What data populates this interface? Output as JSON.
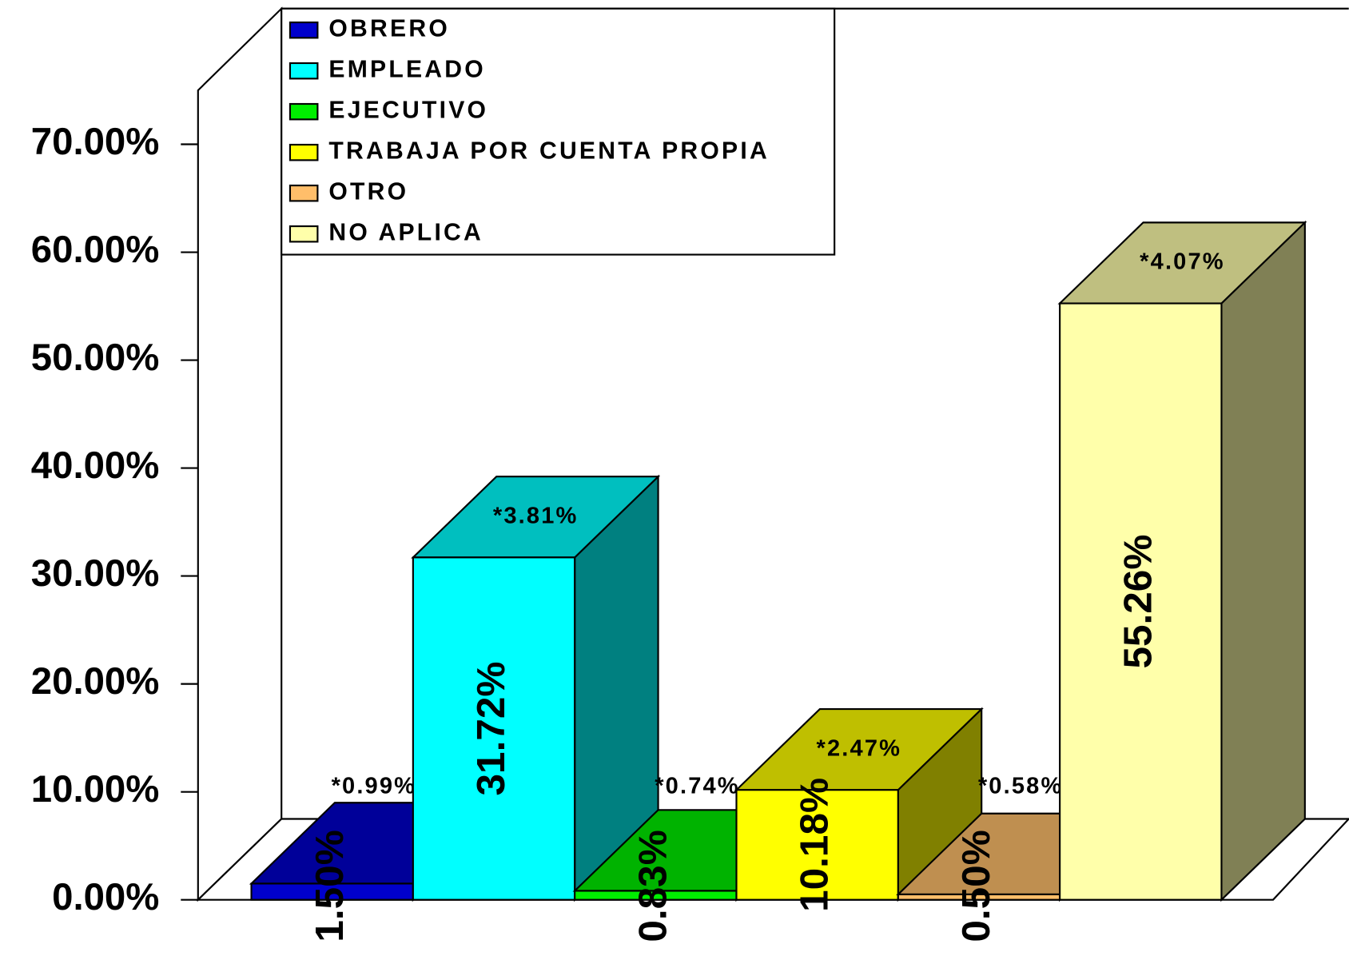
{
  "chart_data": {
    "type": "bar3d",
    "series": [
      {
        "name": "OBRERO",
        "color": "#0000cc",
        "values": [
          1.5
        ],
        "value_labels": [
          "1.50%"
        ],
        "notes": [
          0.99
        ],
        "note_labels": [
          "*0.99%"
        ]
      },
      {
        "name": "EMPLEADO",
        "color": "#00ffff",
        "values": [
          31.72
        ],
        "value_labels": [
          "31.72%"
        ],
        "notes": [
          3.81
        ],
        "note_labels": [
          "*3.81%"
        ]
      },
      {
        "name": "EJECUTIVO",
        "color": "#00ee00",
        "values": [
          0.83
        ],
        "value_labels": [
          "0.83%"
        ],
        "notes": [
          0.74
        ],
        "note_labels": [
          "*0.74%"
        ]
      },
      {
        "name": "TRABAJA POR CUENTA PROPIA",
        "color": "#ffff00",
        "values": [
          10.18
        ],
        "value_labels": [
          "10.18%"
        ],
        "notes": [
          2.47
        ],
        "note_labels": [
          "*2.47%"
        ]
      },
      {
        "name": "OTRO",
        "color": "#ffbe6a",
        "values": [
          0.5
        ],
        "value_labels": [
          "0.50%"
        ],
        "notes": [
          0.58
        ],
        "note_labels": [
          "*0.58%"
        ]
      },
      {
        "name": "NO APLICA",
        "color": "#ffffaa",
        "values": [
          55.26
        ],
        "value_labels": [
          "55.26%"
        ],
        "notes": [
          4.07
        ],
        "note_labels": [
          "*4.07%"
        ]
      }
    ],
    "ylim": [
      0,
      75
    ],
    "yticks": [
      {
        "value": 0,
        "label": "0.00%"
      },
      {
        "value": 10,
        "label": "10.00%"
      },
      {
        "value": 20,
        "label": "20.00%"
      },
      {
        "value": 30,
        "label": "30.00%"
      },
      {
        "value": 40,
        "label": "40.00%"
      },
      {
        "value": 50,
        "label": "50.00%"
      },
      {
        "value": 60,
        "label": "60.00%"
      },
      {
        "value": 70,
        "label": "70.00%"
      }
    ],
    "legend": "top"
  }
}
